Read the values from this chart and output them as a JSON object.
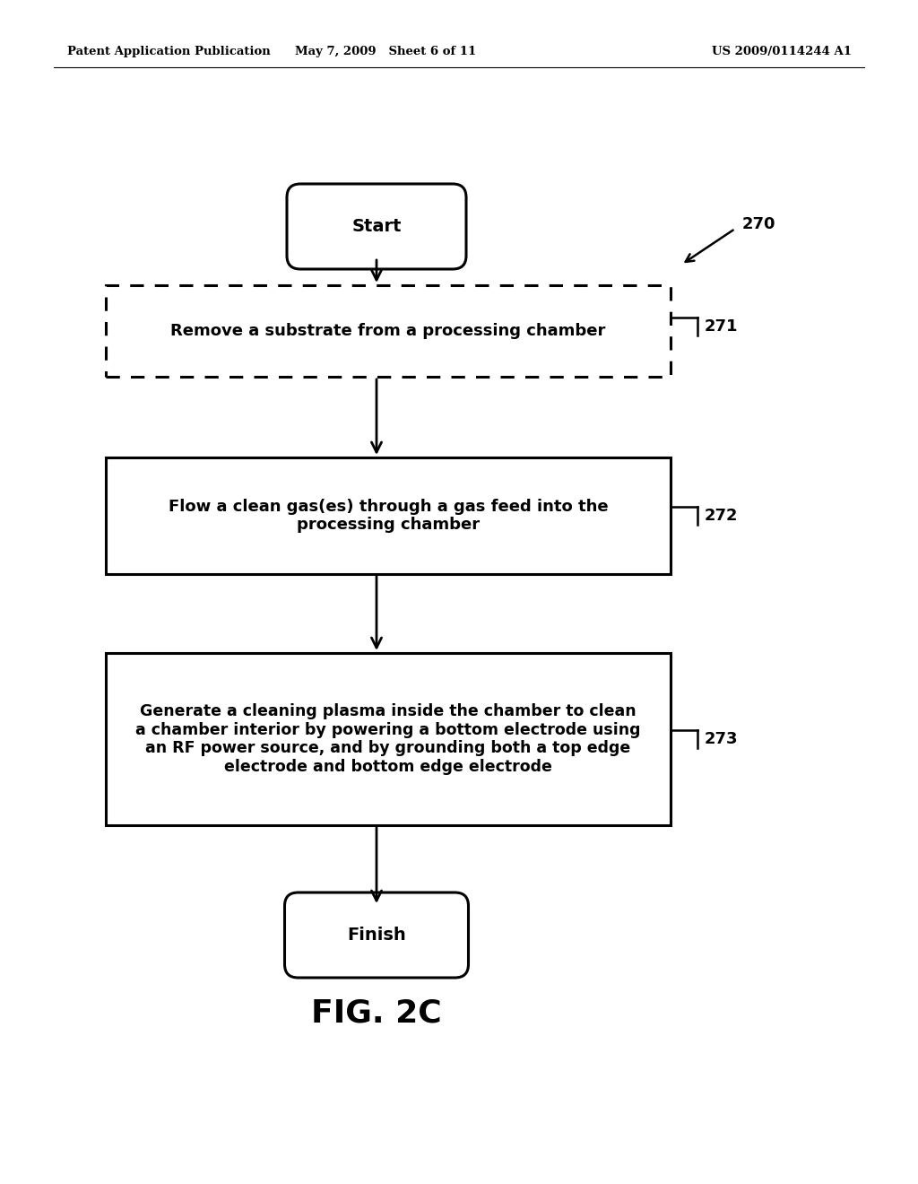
{
  "bg_color": "#ffffff",
  "header_left": "Patent Application Publication",
  "header_mid": "May 7, 2009   Sheet 6 of 11",
  "header_right": "US 2009/0114244 A1",
  "fig_label": "FIG. 2C",
  "start_label": "Start",
  "finish_label": "Finish",
  "box271_text": "Remove a substrate from a processing chamber",
  "box272_text": "Flow a clean gas(es) through a gas feed into the\nprocessing chamber",
  "box273_text": "Generate a cleaning plasma inside the chamber to clean\na chamber interior by powering a bottom electrode using\nan RF power source, and by grounding both a top edge\nelectrode and bottom edge electrode",
  "label270": "270",
  "label271": "271",
  "label272": "272",
  "label273": "273"
}
